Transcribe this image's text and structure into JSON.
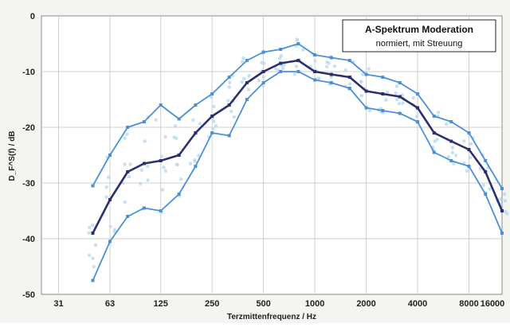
{
  "chart_data": {
    "type": "line",
    "title": "A-Spektrum Moderation",
    "subtitle": "normiert, mit Streuung",
    "xlabel": "Terzmittenfrequenz / Hz",
    "ylabel": "D_F^S(f) / dB",
    "x_scale": "log",
    "xlim": [
      25,
      12500
    ],
    "ylim": [
      -50,
      0
    ],
    "grid": true,
    "x_tick_labels": [
      "31",
      "63",
      "125",
      "250",
      "500",
      "1000",
      "2000",
      "4000",
      "8000",
      "16000"
    ],
    "x_tick_values": [
      31.5,
      63,
      125,
      250,
      500,
      1000,
      2000,
      4000,
      8000,
      16000
    ],
    "y_tick_labels": [
      "0",
      "-10",
      "-20",
      "-30",
      "-40",
      "-50"
    ],
    "y_tick_values": [
      0,
      -10,
      -20,
      -30,
      -40,
      -50
    ],
    "x": [
      50,
      63,
      80,
      100,
      125,
      160,
      200,
      250,
      315,
      400,
      500,
      630,
      800,
      1000,
      1250,
      1600,
      2000,
      2500,
      3150,
      4000,
      5000,
      6300,
      8000,
      10000,
      12500
    ],
    "series": [
      {
        "role": "upper",
        "color": "#4a90d9",
        "values": [
          -30.5,
          -25,
          -20,
          -19,
          -16,
          -18.5,
          -16,
          -14,
          -11,
          -8,
          -6.5,
          -6,
          -5,
          -7,
          -7.5,
          -8,
          -10.5,
          -11,
          -12,
          -14,
          -18,
          -19,
          -21,
          -26,
          -31
        ]
      },
      {
        "role": "mean",
        "color": "#2b2f6e",
        "values": [
          -39,
          -33,
          -28,
          -26.5,
          -26,
          -25,
          -21,
          -18,
          -16,
          -12,
          -10,
          -8.5,
          -8,
          -10,
          -10.5,
          -11,
          -13.5,
          -14,
          -14.5,
          -16.5,
          -21,
          -22.5,
          -24,
          -28,
          -35
        ]
      },
      {
        "role": "lower",
        "color": "#4a90d9",
        "values": [
          -47.5,
          -40.5,
          -36,
          -34.5,
          -35,
          -32,
          -27,
          -21,
          -21.5,
          -15,
          -12,
          -10,
          -10,
          -11.5,
          -12,
          -13,
          -16.5,
          -17,
          -17.5,
          -19,
          -24.5,
          -26,
          -27,
          -32,
          -39
        ]
      }
    ],
    "scatter_color": "#b9d8ef",
    "legend_position": "top-right"
  }
}
